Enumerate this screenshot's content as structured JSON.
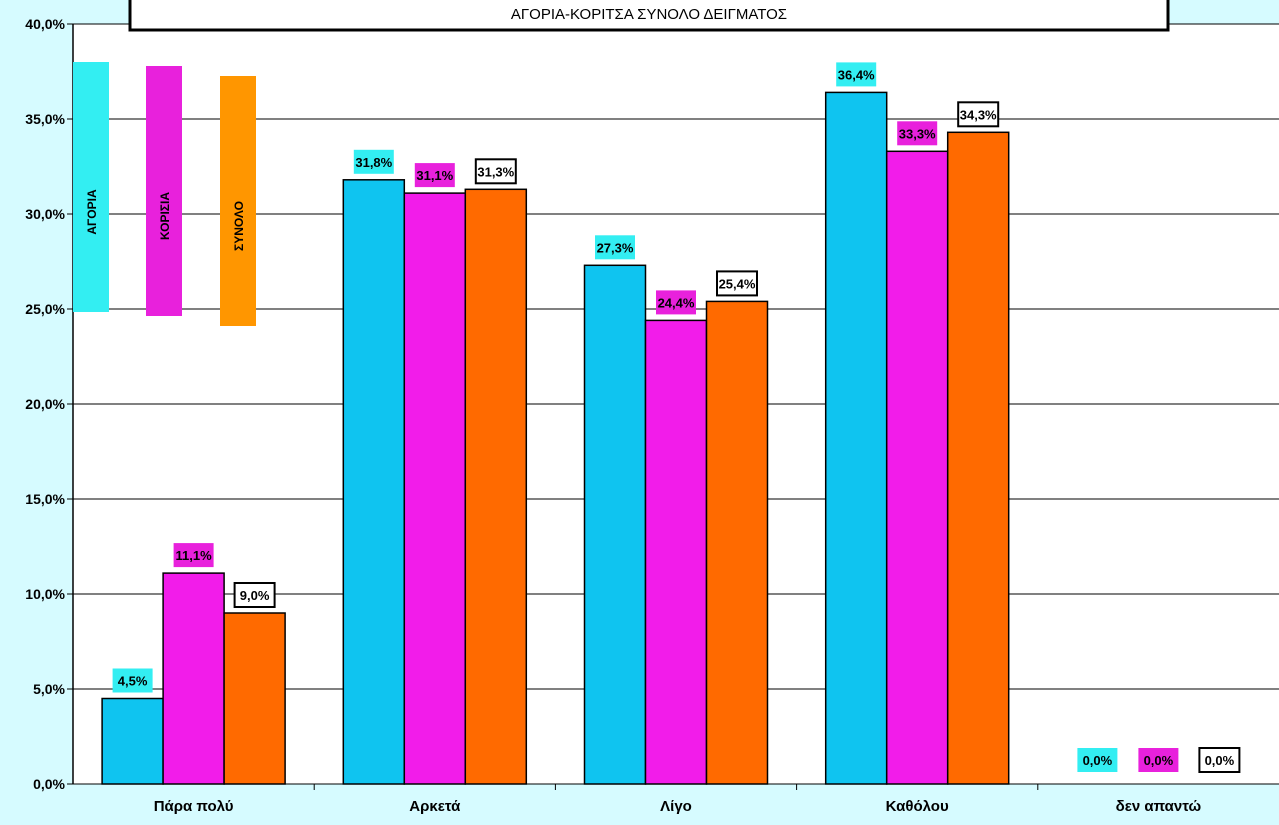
{
  "chart_data": {
    "type": "bar",
    "title": "ΑΓΟΡΙΑ-ΚΟΡΙΤΣΑ  ΣΥΝΟΛΟ ΔΕΙΓΜΑΤΟΣ",
    "categories": [
      "Πάρα πολύ",
      "Αρκετά",
      "Λίγο",
      "Καθόλου",
      "δεν απαντώ"
    ],
    "series": [
      {
        "name": "ΑΓΟΡΙΑ",
        "color": "#0fc4f0",
        "label_bg": "#33eef2",
        "values": [
          4.5,
          31.8,
          27.3,
          36.4,
          0.0
        ],
        "labels": [
          "4,5%",
          "31,8%",
          "27,3%",
          "36,4%",
          "0,0%"
        ]
      },
      {
        "name": "ΚΟΡΙΣΙΑ",
        "color": "#f21cea",
        "label_bg": "#e821dc",
        "values": [
          11.1,
          31.1,
          24.4,
          33.3,
          0.0
        ],
        "labels": [
          "11,1%",
          "31,1%",
          "24,4%",
          "33,3%",
          "0,0%"
        ]
      },
      {
        "name": "ΣΥΝΟΛΟ",
        "color": "#ff6a00",
        "label_bg": "#ffffff",
        "legend_color": "#ff9600",
        "values": [
          9.0,
          31.3,
          25.4,
          34.3,
          0.0
        ],
        "labels": [
          "9,0%",
          "31,3%",
          "25,4%",
          "34,3%",
          "0,0%"
        ]
      }
    ],
    "ylim": [
      0,
      40
    ],
    "yticks": [
      "0,0%",
      "5,0%",
      "10,0%",
      "15,0%",
      "20,0%",
      "25,0%",
      "30,0%",
      "35,0%",
      "40,0%"
    ],
    "ytick_values": [
      0,
      5,
      10,
      15,
      20,
      25,
      30,
      35,
      40
    ],
    "grid": true,
    "legend_position": "top-left",
    "colors": {
      "background": "#d6fbff",
      "plot_background": "#ffffff",
      "grid": "#000000"
    }
  }
}
